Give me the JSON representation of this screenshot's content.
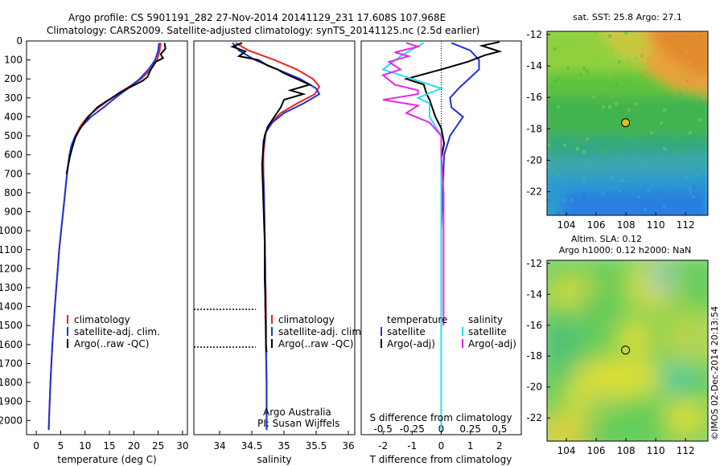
{
  "figure": {
    "title_line1": "Argo profile: CS 5901191_282 27-Nov-2014 20141129_231 17.608S 107.968E",
    "title_line2": "Climatology: CARS2009. Satellite-adjusted climatology: synTS_20141125.nc (2.5d earlier)",
    "credit": "©IMOS 02-Dec-2014 20:13:54"
  },
  "colors": {
    "climatology": "#e8281e",
    "satellite": "#1e32dc",
    "argo": "#000000",
    "salinity_satellite": "#28dcf0",
    "salinity_argo": "#e628e6"
  },
  "chart_data": [
    {
      "type": "line",
      "id": "temperature-profile",
      "xlabel": "temperature (deg C)",
      "ylabel": "",
      "xlim": [
        -2,
        31
      ],
      "ylim": [
        2075,
        0
      ],
      "xticks": [
        "0",
        "5",
        "10",
        "15",
        "20",
        "25",
        "30"
      ],
      "yticks": [
        "0",
        "100",
        "200",
        "300",
        "400",
        "500",
        "600",
        "700",
        "800",
        "900",
        "1000",
        "1100",
        "1200",
        "1300",
        "1400",
        "1500",
        "1600",
        "1700",
        "1800",
        "1900",
        "2000"
      ],
      "legend": [
        "climatology",
        "satellite-adj. clim.",
        "Argo(..raw -QC)"
      ],
      "series": [
        {
          "name": "climatology",
          "color": "#e8281e",
          "points": [
            [
              25.5,
              10
            ],
            [
              25.3,
              50
            ],
            [
              24.8,
              100
            ],
            [
              23.5,
              150
            ],
            [
              21.5,
              200
            ],
            [
              18.5,
              250
            ],
            [
              15.5,
              300
            ],
            [
              12.8,
              350
            ],
            [
              10.5,
              400
            ],
            [
              9,
              450
            ],
            [
              8,
              500
            ],
            [
              7.3,
              550
            ],
            [
              6.8,
              600
            ],
            [
              6.3,
              700
            ],
            [
              5.9,
              800
            ],
            [
              5.5,
              900
            ],
            [
              5.1,
              1000
            ],
            [
              4.7,
              1100
            ],
            [
              4.4,
              1200
            ],
            [
              4.1,
              1300
            ],
            [
              3.8,
              1400
            ],
            [
              3.55,
              1500
            ],
            [
              3.3,
              1600
            ],
            [
              3.1,
              1700
            ],
            [
              2.9,
              1800
            ],
            [
              2.75,
              1900
            ],
            [
              2.6,
              2000
            ],
            [
              2.55,
              2050
            ]
          ]
        },
        {
          "name": "satellite-adj. clim.",
          "color": "#1e32dc",
          "points": [
            [
              25.2,
              10
            ],
            [
              25,
              50
            ],
            [
              24.4,
              100
            ],
            [
              23,
              150
            ],
            [
              21.2,
              200
            ],
            [
              18.8,
              250
            ],
            [
              16.2,
              300
            ],
            [
              13.8,
              350
            ],
            [
              11.2,
              400
            ],
            [
              9.3,
              450
            ],
            [
              8,
              500
            ],
            [
              7.2,
              550
            ],
            [
              6.8,
              600
            ],
            [
              6.3,
              700
            ],
            [
              5.9,
              800
            ],
            [
              5.5,
              900
            ],
            [
              5.1,
              1000
            ],
            [
              4.7,
              1100
            ],
            [
              4.4,
              1200
            ],
            [
              4.1,
              1300
            ],
            [
              3.8,
              1400
            ],
            [
              3.55,
              1500
            ],
            [
              3.3,
              1600
            ],
            [
              3.1,
              1700
            ],
            [
              2.9,
              1800
            ],
            [
              2.75,
              1900
            ],
            [
              2.6,
              2000
            ],
            [
              2.55,
              2050
            ]
          ]
        },
        {
          "name": "Argo(..raw -QC)",
          "color": "#000000",
          "points": [
            [
              26.3,
              10
            ],
            [
              26.5,
              40
            ],
            [
              25.5,
              70
            ],
            [
              26,
              90
            ],
            [
              24.5,
              110
            ],
            [
              23.5,
              150
            ],
            [
              22.8,
              190
            ],
            [
              21.8,
              210
            ],
            [
              19.5,
              240
            ],
            [
              17.2,
              270
            ],
            [
              15.5,
              300
            ],
            [
              14.2,
              320
            ],
            [
              12.5,
              350
            ],
            [
              11,
              390
            ],
            [
              9.8,
              430
            ],
            [
              8.8,
              470
            ],
            [
              8,
              510
            ],
            [
              7.4,
              560
            ],
            [
              6.9,
              610
            ],
            [
              6.2,
              700
            ]
          ]
        }
      ]
    },
    {
      "type": "line",
      "id": "salinity-profile",
      "xlabel": "salinity",
      "xlim": [
        33.6,
        36.1
      ],
      "ylim": [
        2075,
        0
      ],
      "xticks": [
        "34",
        "34.5",
        "35",
        "35.5",
        "36"
      ],
      "legend": [
        "climatology",
        "satellite-adj. clim.",
        "Argo(..raw -QC)"
      ],
      "annotations": [
        "Argo Australia",
        "PI: Susan Wijffels"
      ],
      "series": [
        {
          "name": "climatology",
          "color": "#e8281e",
          "points": [
            [
              34.25,
              10
            ],
            [
              34.45,
              50
            ],
            [
              34.85,
              100
            ],
            [
              35.2,
              150
            ],
            [
              35.45,
              200
            ],
            [
              35.55,
              240
            ],
            [
              35.48,
              280
            ],
            [
              35.2,
              330
            ],
            [
              34.95,
              380
            ],
            [
              34.8,
              430
            ],
            [
              34.72,
              480
            ],
            [
              34.7,
              530
            ],
            [
              34.68,
              600
            ],
            [
              34.68,
              700
            ],
            [
              34.69,
              800
            ],
            [
              34.7,
              1000
            ],
            [
              34.71,
              1200
            ],
            [
              34.72,
              1400
            ],
            [
              34.72,
              1600
            ],
            [
              34.73,
              1800
            ],
            [
              34.73,
              2000
            ],
            [
              34.73,
              2050
            ]
          ]
        },
        {
          "name": "satellite-adj. clim.",
          "color": "#1e32dc",
          "points": [
            [
              34.2,
              10
            ],
            [
              34.3,
              50
            ],
            [
              34.55,
              100
            ],
            [
              34.9,
              150
            ],
            [
              35.25,
              200
            ],
            [
              35.5,
              250
            ],
            [
              35.55,
              280
            ],
            [
              35.3,
              330
            ],
            [
              35.0,
              380
            ],
            [
              34.82,
              430
            ],
            [
              34.72,
              480
            ],
            [
              34.68,
              530
            ],
            [
              34.67,
              600
            ],
            [
              34.68,
              700
            ],
            [
              34.69,
              800
            ],
            [
              34.7,
              1000
            ],
            [
              34.71,
              1200
            ],
            [
              34.71,
              1400
            ],
            [
              34.72,
              1600
            ],
            [
              34.73,
              1800
            ],
            [
              34.73,
              2000
            ],
            [
              34.73,
              2050
            ]
          ]
        },
        {
          "name": "Argo(..raw -QC)",
          "color": "#000000",
          "points": [
            [
              34.35,
              10
            ],
            [
              34.2,
              30
            ],
            [
              34.4,
              55
            ],
            [
              34.3,
              80
            ],
            [
              34.6,
              100
            ],
            [
              34.75,
              130
            ],
            [
              34.9,
              150
            ],
            [
              35.0,
              170
            ],
            [
              35.2,
              200
            ],
            [
              35.4,
              230
            ],
            [
              35.1,
              260
            ],
            [
              35.3,
              280
            ],
            [
              35.0,
              310
            ],
            [
              34.95,
              350
            ],
            [
              34.85,
              400
            ],
            [
              34.75,
              450
            ],
            [
              34.7,
              500
            ],
            [
              34.68,
              560
            ],
            [
              34.66,
              650
            ],
            [
              34.67,
              750
            ],
            [
              34.68,
              850
            ],
            [
              34.69,
              950
            ],
            [
              34.7,
              1050
            ],
            [
              34.7,
              1150
            ],
            [
              34.7,
              1250
            ],
            [
              34.71,
              1350
            ],
            [
              34.71,
              1400
            ],
            [
              34.72,
              1500
            ],
            [
              34.72,
              1600
            ],
            [
              34.73,
              1640
            ]
          ]
        }
      ]
    },
    {
      "type": "line",
      "id": "difference-profile",
      "xlabel": "T difference from climatology",
      "xlabel_top": "S difference from climatology",
      "xlim": [
        -2.75,
        2.75
      ],
      "ylim": [
        2075,
        0
      ],
      "xticks_bottom": [
        "-2",
        "-1",
        "0",
        "1",
        "2"
      ],
      "xticks_top": [
        "-0.5",
        "-0.25",
        "0",
        "0.25",
        "0.5"
      ],
      "legend_temperature_heading": "temperature",
      "legend_salinity_heading": "salinity",
      "legend": [
        "satellite",
        "Argo(-adj)",
        "satellite",
        "Argo(-adj)"
      ],
      "series": [
        {
          "name": "satellite",
          "group": "temperature",
          "color": "#1e32dc",
          "points": [
            [
              0.35,
              10
            ],
            [
              1.0,
              50
            ],
            [
              1.3,
              100
            ],
            [
              1.3,
              150
            ],
            [
              0.6,
              250
            ],
            [
              0.3,
              300
            ],
            [
              0.35,
              350
            ],
            [
              0.75,
              400
            ],
            [
              0.3,
              500
            ],
            [
              0.1,
              600
            ],
            [
              0.05,
              800
            ],
            [
              0,
              1000
            ],
            [
              0,
              2050
            ]
          ]
        },
        {
          "name": "Argo(-adj)",
          "group": "temperature",
          "color": "#000000",
          "points": [
            [
              2.0,
              5
            ],
            [
              1.4,
              25
            ],
            [
              2.0,
              55
            ],
            [
              1.5,
              75
            ],
            [
              0.9,
              110
            ],
            [
              0,
              150
            ],
            [
              -1.2,
              200
            ],
            [
              -0.6,
              230
            ],
            [
              -0.5,
              280
            ],
            [
              -0.4,
              310
            ],
            [
              -0.2,
              400
            ],
            [
              0,
              460
            ],
            [
              0.1,
              540
            ],
            [
              0,
              620
            ]
          ]
        },
        {
          "name": "satellite",
          "group": "salinity",
          "color": "#28dcf0",
          "points": [
            [
              -0.15,
              10
            ],
            [
              -0.35,
              80
            ],
            [
              -0.5,
              150
            ],
            [
              -0.25,
              200
            ],
            [
              0,
              250
            ],
            [
              -0.2,
              300
            ],
            [
              -0.1,
              330
            ],
            [
              -0.1,
              400
            ],
            [
              -0.05,
              450
            ],
            [
              0,
              500
            ],
            [
              0,
              600
            ],
            [
              0,
              800
            ],
            [
              0,
              1000
            ],
            [
              0,
              2050
            ]
          ]
        },
        {
          "name": "Argo(-adj)",
          "group": "salinity",
          "color": "#e628e6",
          "points": [
            [
              -0.3,
              10
            ],
            [
              -0.2,
              30
            ],
            [
              -0.4,
              60
            ],
            [
              -0.28,
              80
            ],
            [
              -0.45,
              110
            ],
            [
              -0.35,
              150
            ],
            [
              -0.5,
              180
            ],
            [
              -0.4,
              230
            ],
            [
              -0.2,
              260
            ],
            [
              -0.2,
              280
            ],
            [
              -0.5,
              310
            ],
            [
              -0.2,
              340
            ],
            [
              -0.3,
              380
            ],
            [
              -0.1,
              430
            ],
            [
              0,
              500
            ],
            [
              0,
              600
            ],
            [
              0.02,
              800
            ],
            [
              0.02,
              1000
            ],
            [
              0.02,
              1200
            ],
            [
              0.02,
              1400
            ],
            [
              0.02,
              1500
            ]
          ]
        }
      ]
    },
    {
      "type": "heatmap",
      "id": "sst-map",
      "title": "sat. SST: 25.8 Argo: 27.1",
      "xlim": [
        102.7,
        113.5
      ],
      "ylim": [
        -23.5,
        -11.8
      ],
      "xticks": [
        "104",
        "106",
        "108",
        "110",
        "112"
      ],
      "yticks": [
        "-12",
        "-14",
        "-16",
        "-18",
        "-20",
        "-22"
      ],
      "marker": {
        "lon": 107.968,
        "lat": -17.608
      },
      "field": "sst"
    },
    {
      "type": "heatmap",
      "id": "sla-map",
      "title_line1": "Altim. SLA: 0.12",
      "title_line2": "Argo h1000: 0.12 h2000: NaN",
      "xlim": [
        102.7,
        113.5
      ],
      "ylim": [
        -23.5,
        -11.8
      ],
      "xticks": [
        "104",
        "106",
        "108",
        "110",
        "112"
      ],
      "yticks": [
        "-12",
        "-14",
        "-16",
        "-18",
        "-20",
        "-22"
      ],
      "marker": {
        "lon": 107.968,
        "lat": -17.608
      },
      "field": "sla"
    }
  ]
}
